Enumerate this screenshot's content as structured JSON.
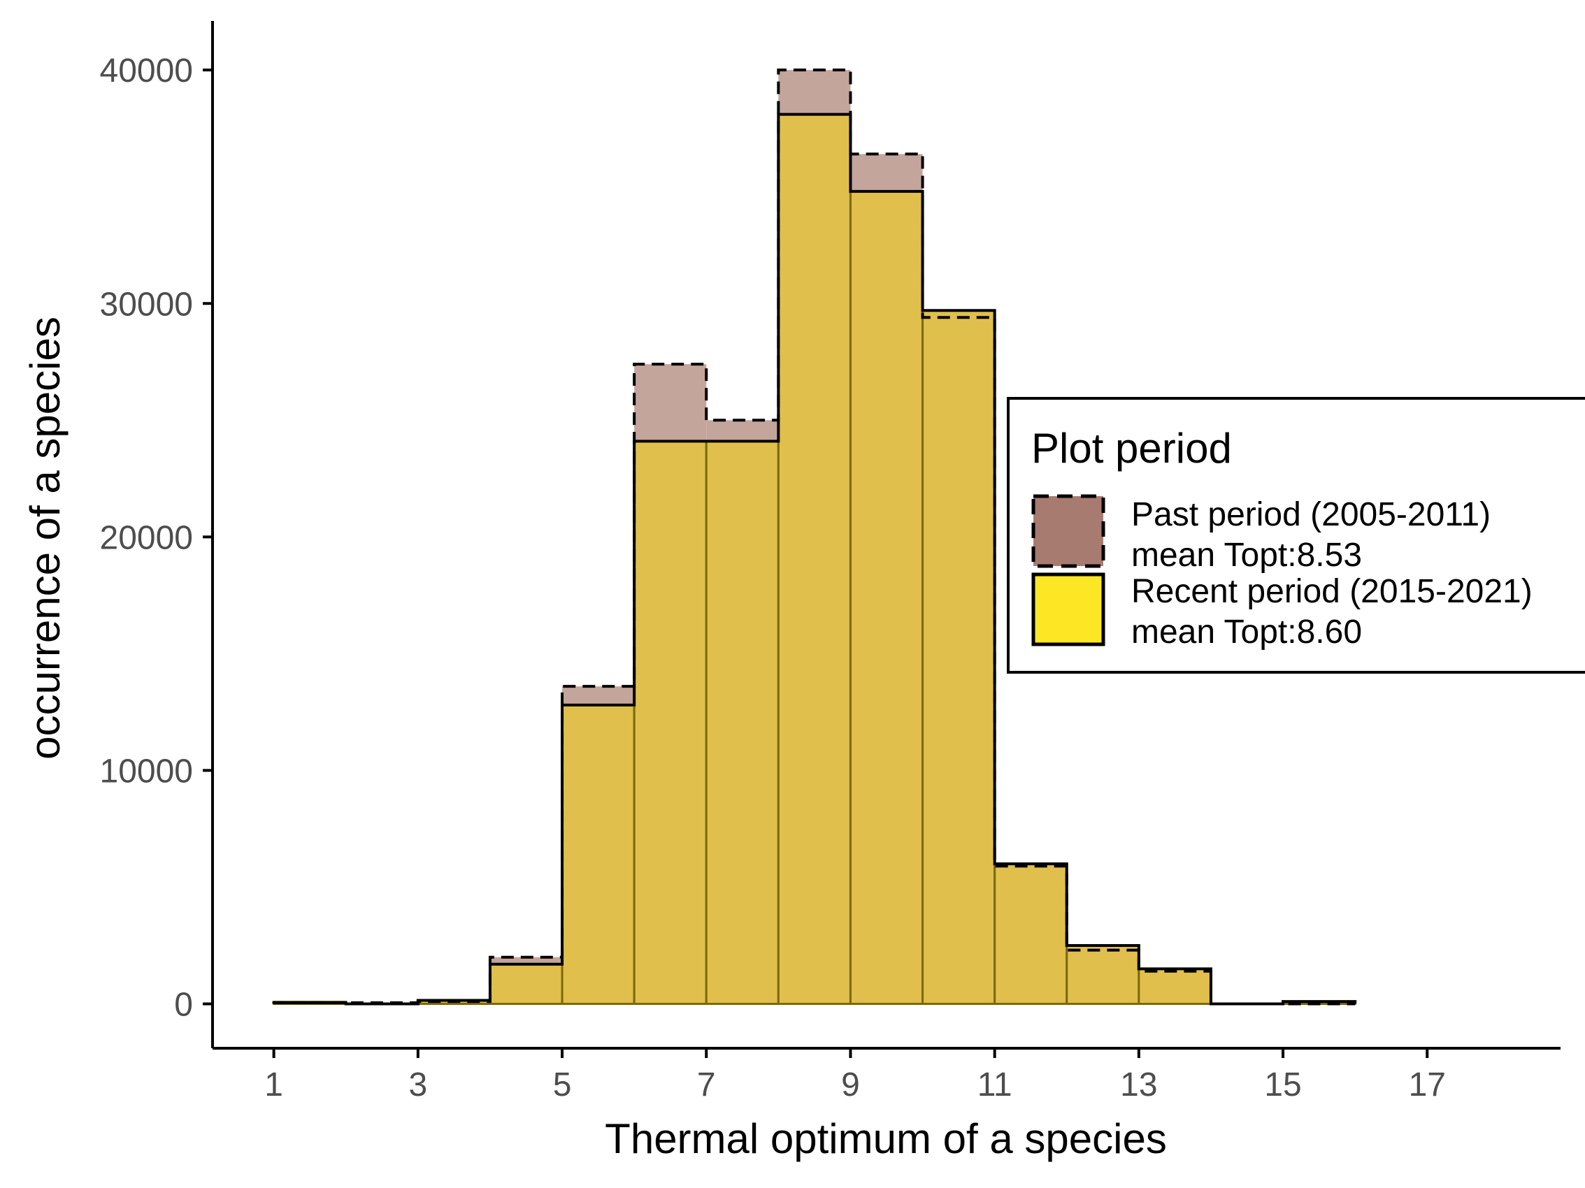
{
  "chart_data": {
    "type": "bar",
    "subtype": "overlaid-histogram",
    "title": "",
    "xlabel": "Thermal optimum of a species",
    "ylabel": "occurrence of a species",
    "xlim": [
      0.15,
      18.85
    ],
    "ylim": [
      -1900,
      42100
    ],
    "x_ticks": [
      1,
      3,
      5,
      7,
      9,
      11,
      13,
      15,
      17
    ],
    "y_ticks": [
      0,
      10000,
      20000,
      30000,
      40000
    ],
    "x_tick_labels": [
      "1",
      "3",
      "5",
      "7",
      "9",
      "11",
      "13",
      "15",
      "17"
    ],
    "y_tick_labels": [
      "0",
      "10000",
      "20000",
      "30000",
      "40000"
    ],
    "bin_edges": [
      1,
      2,
      3,
      4,
      5,
      6,
      7,
      8,
      9,
      10,
      11,
      12,
      13,
      14,
      15,
      16
    ],
    "series": [
      {
        "name": "Past period (2005-2011)\nmean Topt:8.53",
        "values": [
          50,
          50,
          100,
          2000,
          13600,
          27400,
          25000,
          40000,
          36400,
          29400,
          5900,
          2300,
          1400,
          0,
          0
        ],
        "fill": "#a87b70",
        "line": "dashed"
      },
      {
        "name": "Recent period (2015-2021)\nmean Topt:8.60",
        "values": [
          50,
          0,
          150,
          1700,
          12800,
          24100,
          24100,
          38100,
          34800,
          29700,
          6000,
          2500,
          1500,
          0,
          100
        ],
        "fill": "#fde725",
        "line": "solid"
      }
    ],
    "legend": {
      "title": "Plot period",
      "position": "right",
      "entries": [
        {
          "line1": "Past period (2005-2011)",
          "line2": "mean Topt:8.53",
          "fill": "#a87b70",
          "line": "dashed"
        },
        {
          "line1": "Recent period (2015-2021)",
          "line2": "mean Topt:8.60",
          "fill": "#fde725",
          "line": "solid"
        }
      ]
    },
    "colors": {
      "past_fill": "#a87b70",
      "recent_fill": "#fde725",
      "overlap_fill": "#e0bf4d",
      "past_only_fill": "#c4a59c",
      "recent_bin_line": "#7d6a00",
      "axis": "#000000",
      "tick_label": "#4d4d4d"
    },
    "grid": false
  }
}
